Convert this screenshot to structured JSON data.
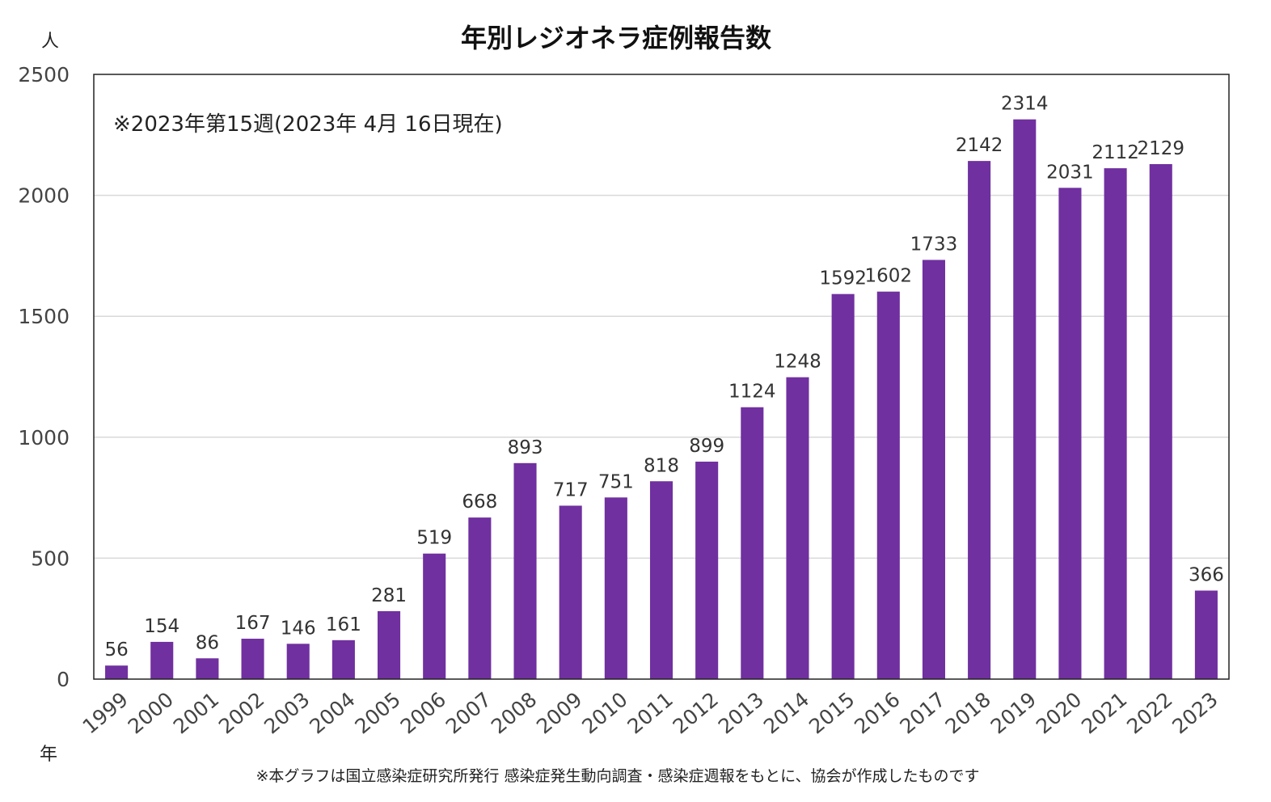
{
  "chart_data": {
    "type": "bar",
    "title": "年別レジオネラ症例報告数",
    "ylabel": "人",
    "xlabel": "年",
    "annotation": "※2023年第15週(2023年 4月 16日現在)",
    "footnote": "※本グラフは国立感染症研究所発行 感染症発生動向調査・感染症週報をもとに、協会が作成したものです",
    "categories": [
      "1999",
      "2000",
      "2001",
      "2002",
      "2003",
      "2004",
      "2005",
      "2006",
      "2007",
      "2008",
      "2009",
      "2010",
      "2011",
      "2012",
      "2013",
      "2014",
      "2015",
      "2016",
      "2017",
      "2018",
      "2019",
      "2020",
      "2021",
      "2022",
      "2023"
    ],
    "values": [
      56,
      154,
      86,
      167,
      146,
      161,
      281,
      519,
      668,
      893,
      717,
      751,
      818,
      899,
      1124,
      1248,
      1592,
      1602,
      1733,
      2142,
      2314,
      2031,
      2112,
      2129,
      366
    ],
    "ylim": [
      0,
      2500
    ],
    "yticks": [
      0,
      500,
      1000,
      1500,
      2000,
      2500
    ],
    "grid": true,
    "legend": "none",
    "bar_color": "#7030a0",
    "gridline_color": "#d9d9d9"
  }
}
